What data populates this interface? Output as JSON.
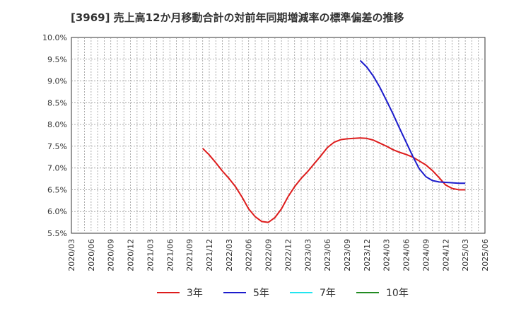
{
  "chart_data": {
    "type": "line",
    "title": "[3969]  売上高12か月移動合計の対前年同期増減率の標準偏差の推移",
    "xlabel": "",
    "ylabel": "",
    "ylim": [
      5.5,
      10.0
    ],
    "grid": true,
    "legend_position": "bottom",
    "x_ticks": [
      "2020/03",
      "2020/06",
      "2020/09",
      "2020/12",
      "2021/03",
      "2021/06",
      "2021/09",
      "2021/12",
      "2022/03",
      "2022/06",
      "2022/09",
      "2022/12",
      "2023/03",
      "2023/06",
      "2023/09",
      "2023/12",
      "2024/03",
      "2024/06",
      "2024/09",
      "2024/12",
      "2025/03",
      "2025/06"
    ],
    "y_ticks": [
      "5.5%",
      "6.0%",
      "6.5%",
      "7.0%",
      "7.5%",
      "8.0%",
      "8.5%",
      "9.0%",
      "9.5%",
      "10.0%"
    ],
    "series": [
      {
        "name": "3年",
        "color": "#dd1c1c",
        "points": [
          [
            "2021/11",
            7.45
          ],
          [
            "2021/12",
            7.3
          ],
          [
            "2022/01",
            7.12
          ],
          [
            "2022/02",
            6.93
          ],
          [
            "2022/03",
            6.76
          ],
          [
            "2022/04",
            6.57
          ],
          [
            "2022/05",
            6.33
          ],
          [
            "2022/06",
            6.06
          ],
          [
            "2022/07",
            5.88
          ],
          [
            "2022/08",
            5.77
          ],
          [
            "2022/09",
            5.75
          ],
          [
            "2022/10",
            5.86
          ],
          [
            "2022/11",
            6.06
          ],
          [
            "2022/12",
            6.34
          ],
          [
            "2023/01",
            6.57
          ],
          [
            "2023/02",
            6.76
          ],
          [
            "2023/03",
            6.92
          ],
          [
            "2023/04",
            7.1
          ],
          [
            "2023/05",
            7.28
          ],
          [
            "2023/06",
            7.47
          ],
          [
            "2023/07",
            7.59
          ],
          [
            "2023/08",
            7.65
          ],
          [
            "2023/09",
            7.67
          ],
          [
            "2023/10",
            7.68
          ],
          [
            "2023/11",
            7.69
          ],
          [
            "2023/12",
            7.68
          ],
          [
            "2024/01",
            7.64
          ],
          [
            "2024/02",
            7.57
          ],
          [
            "2024/03",
            7.5
          ],
          [
            "2024/04",
            7.42
          ],
          [
            "2024/05",
            7.36
          ],
          [
            "2024/06",
            7.31
          ],
          [
            "2024/07",
            7.25
          ],
          [
            "2024/08",
            7.16
          ],
          [
            "2024/09",
            7.07
          ],
          [
            "2024/10",
            6.94
          ],
          [
            "2024/11",
            6.78
          ],
          [
            "2024/12",
            6.61
          ],
          [
            "2025/01",
            6.53
          ],
          [
            "2025/02",
            6.5
          ],
          [
            "2025/03",
            6.5
          ]
        ]
      },
      {
        "name": "5年",
        "color": "#1c1ccc",
        "points": [
          [
            "2023/11",
            9.47
          ],
          [
            "2023/12",
            9.32
          ],
          [
            "2024/01",
            9.11
          ],
          [
            "2024/02",
            8.85
          ],
          [
            "2024/03",
            8.55
          ],
          [
            "2024/04",
            8.24
          ],
          [
            "2024/05",
            7.91
          ],
          [
            "2024/06",
            7.59
          ],
          [
            "2024/07",
            7.27
          ],
          [
            "2024/08",
            6.98
          ],
          [
            "2024/09",
            6.8
          ],
          [
            "2024/10",
            6.71
          ],
          [
            "2024/11",
            6.68
          ],
          [
            "2024/12",
            6.67
          ],
          [
            "2025/01",
            6.66
          ],
          [
            "2025/02",
            6.65
          ],
          [
            "2025/03",
            6.65
          ]
        ]
      },
      {
        "name": "7年",
        "color": "#22e5f0",
        "points": []
      },
      {
        "name": "10年",
        "color": "#228b22",
        "points": []
      }
    ]
  }
}
